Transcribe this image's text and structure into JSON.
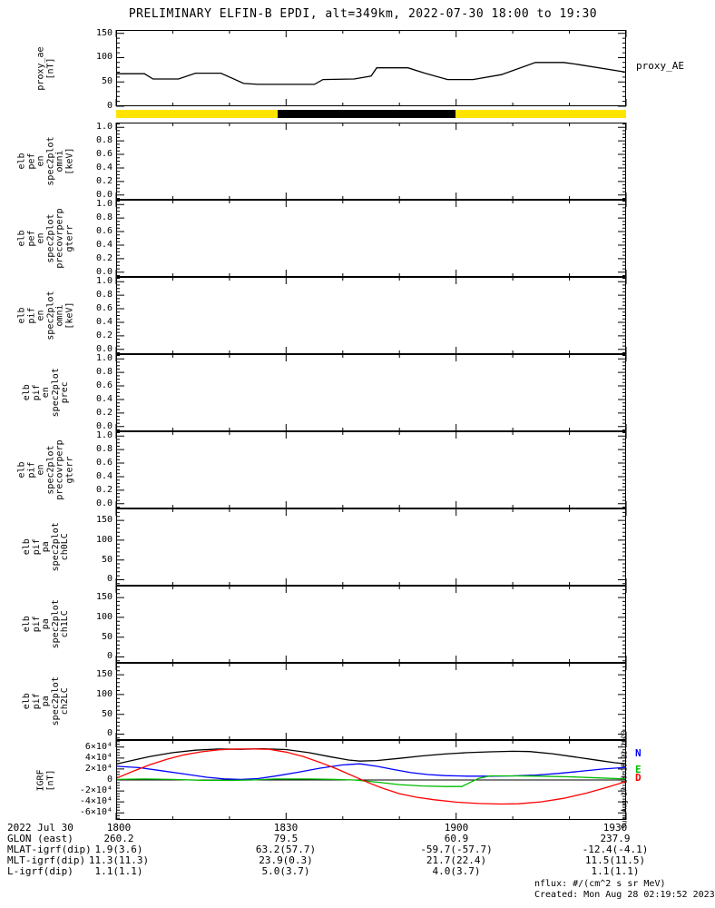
{
  "labels": {
    "proxy_ae_right": "proxy_AE",
    "watermark": "Sun Aug 27 18:18:22 2023"
  },
  "footer": {
    "nflux": "nflux: #/(cm^2 s sr MeV)",
    "created": "Created: Mon Aug 28 02:19:52 2023"
  },
  "bottom_table": {
    "rows": [
      {
        "label": "2022 Jul 30",
        "values": [
          "1800",
          "1830",
          "1900",
          "1930"
        ]
      },
      {
        "label": "GLON (east)",
        "values": [
          "260.2",
          "79.5",
          "60.9",
          "237.9"
        ]
      },
      {
        "label": "MLAT-igrf(dip)",
        "values": [
          "1.9(3.6)",
          "63.2(57.7)",
          "-59.7(-57.7)",
          "-12.4(-4.1)"
        ]
      },
      {
        "label": "MLT-igrf(dip)",
        "values": [
          "11.3(11.3)",
          "23.9(0.3)",
          "21.7(22.4)",
          "11.5(11.5)"
        ]
      },
      {
        "label": "L-igrf(dip)",
        "values": [
          "1.1(1.1)",
          "5.0(3.7)",
          "4.0(3.7)",
          "1.1(1.1)"
        ]
      }
    ]
  },
  "chart_data": {
    "type": "line",
    "title": "PRELIMINARY ELFIN-B EPDI, alt=349km, 2022-07-30 18:00 to 19:30",
    "x_axis": {
      "description": "time UT, minutes after 18:00",
      "range_min": [
        0,
        90
      ],
      "major_tick_min": 30,
      "minor_tick_min": 10,
      "tick_labels": [
        "1800",
        "1830",
        "1900",
        "1930"
      ]
    },
    "status_bar": {
      "description": "yellow/black availability bar under proxy_AE panel",
      "segments": [
        {
          "color": "#ffe400",
          "from": 0.0,
          "to": 0.316
        },
        {
          "color": "#000000",
          "from": 0.316,
          "to": 0.665
        },
        {
          "color": "#ffe400",
          "from": 0.665,
          "to": 1.0
        }
      ]
    },
    "igrf_legend": [
      {
        "label": "N",
        "color": "#0000ff"
      },
      {
        "label": "E",
        "color": "#00bb00"
      },
      {
        "label": "D",
        "color": "#ff0000"
      }
    ],
    "panels": [
      {
        "id": "proxy-ae",
        "label_lines": [
          "proxy_ae",
          "[nT]"
        ],
        "ylim": [
          0,
          157
        ],
        "minor_step": 10,
        "yticks": [
          {
            "v": 150,
            "t": "150"
          },
          {
            "v": 100,
            "t": "100"
          },
          {
            "v": 50,
            "t": "50"
          },
          {
            "v": 0,
            "t": "0"
          }
        ],
        "series": [
          {
            "name": "proxy_ae",
            "color": "#000000",
            "points": [
              [
                0,
                67
              ],
              [
                5,
                67
              ],
              [
                6.5,
                56
              ],
              [
                11,
                56
              ],
              [
                14,
                68
              ],
              [
                18.5,
                68
              ],
              [
                22.5,
                47
              ],
              [
                25,
                45
              ],
              [
                35,
                45
              ],
              [
                36.5,
                55
              ],
              [
                42,
                56
              ],
              [
                45,
                62
              ],
              [
                46,
                79
              ],
              [
                51.5,
                79
              ],
              [
                54.5,
                68
              ],
              [
                58.5,
                55
              ],
              [
                63,
                55
              ],
              [
                68,
                65
              ],
              [
                74,
                90
              ],
              [
                79,
                90
              ],
              [
                81,
                87
              ],
              [
                90,
                70
              ]
            ]
          }
        ]
      },
      {
        "id": "pef-en-omni",
        "label_lines": [
          "elb",
          "pef",
          "en",
          "spec2plot",
          "omni",
          "[keV]"
        ],
        "ylim": [
          -0.07,
          1.07
        ],
        "minor_step": 0.05,
        "yticks": [
          {
            "v": 1.0,
            "t": "1.0"
          },
          {
            "v": 0.8,
            "t": "0.8"
          },
          {
            "v": 0.6,
            "t": "0.6"
          },
          {
            "v": 0.4,
            "t": "0.4"
          },
          {
            "v": 0.2,
            "t": "0.2"
          },
          {
            "v": 0.0,
            "t": "0.0"
          }
        ],
        "series": []
      },
      {
        "id": "pef-en-precovrperp-gterr",
        "label_lines": [
          "elb",
          "pef",
          "en",
          "spec2plot",
          "precovrperp",
          "gterr"
        ],
        "ylim": [
          -0.07,
          1.07
        ],
        "minor_step": 0.05,
        "yticks": [
          {
            "v": 1.0,
            "t": "1.0"
          },
          {
            "v": 0.8,
            "t": "0.8"
          },
          {
            "v": 0.6,
            "t": "0.6"
          },
          {
            "v": 0.4,
            "t": "0.4"
          },
          {
            "v": 0.2,
            "t": "0.2"
          },
          {
            "v": 0.0,
            "t": "0.0"
          }
        ],
        "series": []
      },
      {
        "id": "pif-en-omni",
        "label_lines": [
          "elb",
          "pif",
          "en",
          "spec2plot",
          "omni",
          "[keV]"
        ],
        "ylim": [
          -0.07,
          1.07
        ],
        "minor_step": 0.05,
        "yticks": [
          {
            "v": 1.0,
            "t": "1.0"
          },
          {
            "v": 0.8,
            "t": "0.8"
          },
          {
            "v": 0.6,
            "t": "0.6"
          },
          {
            "v": 0.4,
            "t": "0.4"
          },
          {
            "v": 0.2,
            "t": "0.2"
          },
          {
            "v": 0.0,
            "t": "0.0"
          }
        ],
        "series": []
      },
      {
        "id": "pif-en-prec",
        "label_lines": [
          "elb",
          "pif",
          "en",
          "spec2plot",
          "prec"
        ],
        "ylim": [
          -0.07,
          1.07
        ],
        "minor_step": 0.05,
        "yticks": [
          {
            "v": 1.0,
            "t": "1.0"
          },
          {
            "v": 0.8,
            "t": "0.8"
          },
          {
            "v": 0.6,
            "t": "0.6"
          },
          {
            "v": 0.4,
            "t": "0.4"
          },
          {
            "v": 0.2,
            "t": "0.2"
          },
          {
            "v": 0.0,
            "t": "0.0"
          }
        ],
        "series": []
      },
      {
        "id": "pif-en-precovrperp-gterr",
        "label_lines": [
          "elb",
          "pif",
          "en",
          "spec2plot",
          "precovrperp",
          "gterr"
        ],
        "ylim": [
          -0.07,
          1.07
        ],
        "minor_step": 0.05,
        "yticks": [
          {
            "v": 1.0,
            "t": "1.0"
          },
          {
            "v": 0.8,
            "t": "0.8"
          },
          {
            "v": 0.6,
            "t": "0.6"
          },
          {
            "v": 0.4,
            "t": "0.4"
          },
          {
            "v": 0.2,
            "t": "0.2"
          },
          {
            "v": 0.0,
            "t": "0.0"
          }
        ],
        "series": []
      },
      {
        "id": "pif-pa-ch0lc",
        "label_lines": [
          "elb",
          "pif",
          "pa",
          "spec2plot",
          "ch0LC"
        ],
        "ylim": [
          -15,
          180
        ],
        "minor_step": 10,
        "yticks": [
          {
            "v": 150,
            "t": "150"
          },
          {
            "v": 100,
            "t": "100"
          },
          {
            "v": 50,
            "t": "50"
          },
          {
            "v": 0,
            "t": "0"
          }
        ],
        "series": []
      },
      {
        "id": "pif-pa-ch1lc",
        "label_lines": [
          "elb",
          "pif",
          "pa",
          "spec2plot",
          "ch1LC"
        ],
        "ylim": [
          -15,
          180
        ],
        "minor_step": 10,
        "yticks": [
          {
            "v": 150,
            "t": "150"
          },
          {
            "v": 100,
            "t": "100"
          },
          {
            "v": 50,
            "t": "50"
          },
          {
            "v": 0,
            "t": "0"
          }
        ],
        "series": []
      },
      {
        "id": "pif-pa-ch2lc",
        "label_lines": [
          "elb",
          "pif",
          "pa",
          "spec2plot",
          "ch2LC"
        ],
        "ylim": [
          -15,
          180
        ],
        "minor_step": 10,
        "yticks": [
          {
            "v": 150,
            "t": "150"
          },
          {
            "v": 100,
            "t": "100"
          },
          {
            "v": 50,
            "t": "50"
          },
          {
            "v": 0,
            "t": "0"
          }
        ],
        "series": []
      },
      {
        "id": "igrf",
        "label_lines": [
          "IGRF",
          "[nT]"
        ],
        "ylim": [
          -73000,
          73000
        ],
        "minor_step": 5000,
        "zero_line": true,
        "yticks": [
          {
            "v": 60000,
            "t": "6×10⁴"
          },
          {
            "v": 40000,
            "t": "4×10⁴"
          },
          {
            "v": 20000,
            "t": "2×10⁴"
          },
          {
            "v": 0,
            "t": "0"
          },
          {
            "v": -20000,
            "t": "-2×10⁴"
          },
          {
            "v": -40000,
            "t": "-4×10⁴"
          },
          {
            "v": -60000,
            "t": "-6×10⁴"
          }
        ],
        "series": [
          {
            "name": "btotal",
            "color": "#000000",
            "points": [
              [
                0,
                29000
              ],
              [
                3,
                36000
              ],
              [
                6,
                43000
              ],
              [
                10,
                50000
              ],
              [
                14,
                54500
              ],
              [
                18,
                56500
              ],
              [
                22,
                56000
              ],
              [
                26,
                57000
              ],
              [
                30,
                55500
              ],
              [
                34,
                50000
              ],
              [
                38,
                42000
              ],
              [
                41,
                36500
              ],
              [
                43,
                34500
              ],
              [
                46,
                35500
              ],
              [
                50,
                39500
              ],
              [
                54,
                44000
              ],
              [
                58,
                47500
              ],
              [
                62,
                50000
              ],
              [
                66,
                51500
              ],
              [
                70,
                52500
              ],
              [
                73,
                52000
              ],
              [
                77,
                48000
              ],
              [
                81,
                42000
              ],
              [
                85,
                36000
              ],
              [
                88,
                31500
              ],
              [
                90,
                29500
              ]
            ]
          },
          {
            "name": "N",
            "color": "#0000ff",
            "points": [
              [
                0,
                25000
              ],
              [
                4,
                22500
              ],
              [
                8,
                17000
              ],
              [
                12,
                11000
              ],
              [
                16,
                5000
              ],
              [
                19,
                2000
              ],
              [
                22,
                1000
              ],
              [
                25,
                2500
              ],
              [
                28,
                7000
              ],
              [
                32,
                14000
              ],
              [
                36,
                21500
              ],
              [
                40,
                27500
              ],
              [
                43,
                29500
              ],
              [
                46,
                25000
              ],
              [
                49,
                19000
              ],
              [
                52,
                13500
              ],
              [
                55,
                10000
              ],
              [
                58,
                8000
              ],
              [
                62,
                7000
              ],
              [
                66,
                7000
              ],
              [
                70,
                7500
              ],
              [
                74,
                9000
              ],
              [
                78,
                12000
              ],
              [
                82,
                16000
              ],
              [
                86,
                20000
              ],
              [
                90,
                23000
              ]
            ]
          },
          {
            "name": "E",
            "color": "#00bb00",
            "points": [
              [
                0,
                1000
              ],
              [
                5,
                1800
              ],
              [
                10,
                1000
              ],
              [
                15,
                -500
              ],
              [
                20,
                -800
              ],
              [
                24,
                0
              ],
              [
                28,
                1800
              ],
              [
                34,
                1800
              ],
              [
                38,
                1200
              ],
              [
                42,
                0
              ],
              [
                46,
                -4000
              ],
              [
                50,
                -8500
              ],
              [
                54,
                -11000
              ],
              [
                58,
                -12000
              ],
              [
                61,
                -12000
              ],
              [
                63,
                -2000
              ],
              [
                64,
                3000
              ],
              [
                66,
                7500
              ],
              [
                70,
                7500
              ],
              [
                75,
                7000
              ],
              [
                80,
                5800
              ],
              [
                85,
                3800
              ],
              [
                90,
                1800
              ]
            ]
          },
          {
            "name": "D",
            "color": "#ff0000",
            "points": [
              [
                0,
                3000
              ],
              [
                3,
                16000
              ],
              [
                6,
                28000
              ],
              [
                9,
                38000
              ],
              [
                12,
                46000
              ],
              [
                15,
                51500
              ],
              [
                18,
                55000
              ],
              [
                21,
                56500
              ],
              [
                24,
                56500
              ],
              [
                27,
                56000
              ],
              [
                30,
                51000
              ],
              [
                33,
                43000
              ],
              [
                36,
                32000
              ],
              [
                39,
                20000
              ],
              [
                41,
                11000
              ],
              [
                43,
                2000
              ],
              [
                45,
                -7000
              ],
              [
                47,
                -15000
              ],
              [
                50,
                -25000
              ],
              [
                53,
                -31500
              ],
              [
                56,
                -36000
              ],
              [
                60,
                -40500
              ],
              [
                64,
                -43000
              ],
              [
                68,
                -44000
              ],
              [
                71,
                -43500
              ],
              [
                75,
                -40000
              ],
              [
                79,
                -33500
              ],
              [
                83,
                -24000
              ],
              [
                86,
                -15500
              ],
              [
                90,
                -3000
              ]
            ]
          }
        ]
      }
    ]
  }
}
